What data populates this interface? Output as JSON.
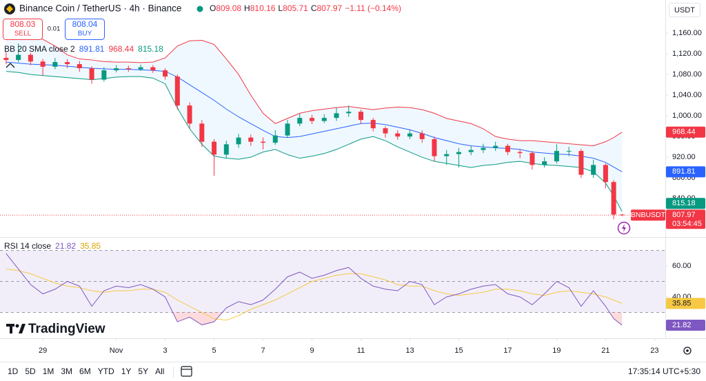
{
  "header": {
    "ohlc_labels": [
      "O",
      "H",
      "L",
      "C"
    ],
    "change": "−1.11 (−0.14%)",
    "currency": "USDT",
    "logo": "TradingView"
  },
  "trade": {
    "sell": 808.03,
    "sell_label": "SELL",
    "spread": 0.01,
    "buy": 808.04,
    "buy_label": "BUY"
  },
  "toolbar": {
    "ranges": [
      "1D",
      "5D",
      "1M",
      "3M",
      "6M",
      "YTD",
      "1Y",
      "5Y",
      "All"
    ],
    "time": "17:35:14 UTC+5:30"
  },
  "chart_data": [
    {
      "type": "candlestick",
      "title": "Binance Coin / TetherUS · 4h · Binance",
      "symbol_label": "BNBUSDT",
      "countdown": "03:54:45",
      "up_color": "#089981",
      "down_color": "#f23645",
      "x": [
        -1.5,
        -1,
        -0.5,
        0,
        0.5,
        1,
        1.5,
        2,
        2.5,
        3,
        3.5,
        4,
        4.5,
        5,
        5.5,
        6,
        6.5,
        7,
        7.5,
        8,
        8.5,
        9,
        9.5,
        10,
        10.5,
        11,
        11.5,
        12,
        12.5,
        13,
        13.5,
        14,
        14.5,
        15,
        15.5,
        16,
        16.5,
        17,
        17.5,
        18,
        18.5,
        19,
        19.5,
        20,
        20.5,
        21,
        21.5,
        22,
        22.5,
        23,
        23.33,
        23.67
      ],
      "open": [
        1112,
        1108,
        1118,
        1105,
        1095,
        1104,
        1100,
        1092,
        1070,
        1088,
        1092,
        1090,
        1094,
        1088,
        1076,
        1020,
        985,
        950,
        925,
        945,
        958,
        950,
        948,
        962,
        985,
        996,
        990,
        996,
        1005,
        1008,
        992,
        976,
        966,
        960,
        966,
        955,
        922,
        926,
        930,
        934,
        938,
        942,
        930,
        928,
        905,
        912,
        932,
        932,
        886,
        905,
        872,
        809.08
      ],
      "high": [
        1125,
        1140,
        1122,
        1110,
        1112,
        1110,
        1106,
        1096,
        1094,
        1098,
        1097,
        1099,
        1098,
        1092,
        1080,
        1026,
        992,
        955,
        952,
        965,
        964,
        958,
        972,
        992,
        1004,
        1002,
        1003,
        1016,
        1020,
        1012,
        996,
        980,
        972,
        974,
        972,
        960,
        934,
        938,
        942,
        946,
        950,
        946,
        936,
        932,
        920,
        945,
        940,
        936,
        915,
        908,
        876,
        810.16
      ],
      "low": [
        1100,
        1104,
        1098,
        1078,
        1090,
        1092,
        1085,
        1062,
        1066,
        1084,
        1085,
        1087,
        1083,
        1070,
        1012,
        975,
        940,
        884,
        918,
        938,
        942,
        935,
        944,
        958,
        980,
        984,
        986,
        990,
        998,
        985,
        970,
        958,
        954,
        955,
        948,
        912,
        905,
        900,
        924,
        928,
        932,
        924,
        918,
        896,
        900,
        908,
        922,
        880,
        880,
        860,
        800,
        805.71
      ],
      "close": [
        1108,
        1118,
        1105,
        1095,
        1104,
        1100,
        1092,
        1070,
        1088,
        1092,
        1090,
        1094,
        1088,
        1076,
        1020,
        985,
        950,
        925,
        945,
        958,
        950,
        948,
        962,
        985,
        996,
        990,
        996,
        1005,
        1008,
        992,
        976,
        966,
        960,
        966,
        955,
        922,
        926,
        930,
        934,
        938,
        942,
        930,
        928,
        905,
        912,
        932,
        932,
        886,
        905,
        872,
        809.08,
        807.97
      ],
      "xlim": [
        -1.75,
        25.44
      ],
      "xticks": [
        {
          "value": 0,
          "label": "29"
        },
        {
          "value": 3,
          "label": "Nov"
        },
        {
          "value": 5,
          "label": "3"
        },
        {
          "value": 7,
          "label": "5"
        },
        {
          "value": 9,
          "label": "7"
        },
        {
          "value": 11,
          "label": "9"
        },
        {
          "value": 13,
          "label": "11"
        },
        {
          "value": 15,
          "label": "13"
        },
        {
          "value": 17,
          "label": "15"
        },
        {
          "value": 19,
          "label": "17"
        },
        {
          "value": 21,
          "label": "19"
        },
        {
          "value": 23,
          "label": "21"
        },
        {
          "value": 25,
          "label": "23"
        }
      ],
      "ylim": [
        767,
        1224
      ],
      "yticks": [
        {
          "value": 1160,
          "label": "1,160.00"
        },
        {
          "value": 1120,
          "label": "1,120.00"
        },
        {
          "value": 1080,
          "label": "1,080.00"
        },
        {
          "value": 1040,
          "label": "1,040.00"
        },
        {
          "value": 1000,
          "label": "1,000.00"
        },
        {
          "value": 960,
          "label": "960.00"
        },
        {
          "value": 920,
          "label": "920.00"
        },
        {
          "value": 880,
          "label": "880.00"
        },
        {
          "value": 840,
          "label": "840.00"
        }
      ],
      "indicator": {
        "title": "BB 20 SMA close 2",
        "fill": "rgba(33,150,243,0.07)",
        "series": [
          {
            "color": "#2962ff",
            "values": [
              1104,
              1102,
              1100,
              1099,
              1098,
              1096,
              1094,
              1092,
              1091,
              1090,
              1090,
              1089,
              1088,
              1086,
              1075,
              1060,
              1045,
              1030,
              1013,
              998,
              985,
              972,
              960,
              958,
              960,
              965,
              970,
              975,
              980,
              985,
              986,
              983,
              978,
              973,
              966,
              958,
              952,
              946,
              942,
              940,
              938,
              937,
              935,
              930,
              928,
              926,
              925,
              922,
              918,
              910,
              901,
              891.81
            ]
          },
          {
            "color": "#f23645",
            "values": [
              1172,
              1165,
              1158,
              1148,
              1135,
              1118,
              1110,
              1108,
              1105,
              1104,
              1104,
              1103,
              1104,
              1112,
              1135,
              1145,
              1146,
              1138,
              1110,
              1080,
              1040,
              1005,
              985,
              995,
              1005,
              1010,
              1013,
              1016,
              1018,
              1015,
              1012,
              1015,
              1017,
              1016,
              1012,
              1005,
              995,
              990,
              985,
              975,
              960,
              955,
              952,
              952,
              950,
              948,
              946,
              944,
              942,
              950,
              958,
              968.44
            ]
          },
          {
            "color": "#089981",
            "values": [
              1086,
              1084,
              1080,
              1078,
              1076,
              1074,
              1072,
              1070,
              1072,
              1075,
              1076,
              1076,
              1073,
              1062,
              1015,
              975,
              945,
              922,
              918,
              916,
              920,
              930,
              935,
              925,
              918,
              922,
              927,
              935,
              945,
              955,
              960,
              952,
              940,
              930,
              920,
              912,
              908,
              904,
              900,
              904,
              906,
              910,
              912,
              908,
              905,
              904,
              902,
              900,
              892,
              870,
              845,
              815.18
            ]
          }
        ]
      }
    },
    {
      "type": "line",
      "title": "RSI 14 close",
      "series": [
        {
          "color": "#7e57c2",
          "values": [
            68,
            58,
            48,
            42,
            45,
            50,
            47,
            34,
            44,
            47,
            46,
            48,
            45,
            40,
            24,
            27,
            22,
            24,
            33,
            37,
            35,
            38,
            45,
            53,
            56,
            52,
            54,
            57,
            59,
            52,
            47,
            45,
            44,
            50,
            48,
            35,
            40,
            42,
            45,
            47,
            48,
            42,
            40,
            35,
            42,
            50,
            46,
            34,
            44,
            34,
            26,
            21.82
          ]
        },
        {
          "color": "#f7c843",
          "values": [
            58,
            57,
            55,
            52,
            49,
            47,
            46,
            44,
            43,
            44,
            44,
            45,
            45,
            43,
            38,
            34,
            30,
            26,
            25,
            28,
            32,
            35,
            38,
            42,
            46,
            50,
            52,
            54,
            55,
            55,
            53,
            51,
            48,
            47,
            47,
            44,
            42,
            41,
            42,
            43,
            45,
            45,
            44,
            42,
            41,
            43,
            44,
            43,
            42,
            40,
            38,
            35.85
          ]
        }
      ],
      "ylim": [
        13.8,
        78.2
      ],
      "yticks": [
        {
          "value": 60,
          "label": "60.00"
        },
        {
          "value": 40,
          "label": "40.00"
        }
      ],
      "bands": [
        70,
        50,
        30
      ]
    }
  ]
}
